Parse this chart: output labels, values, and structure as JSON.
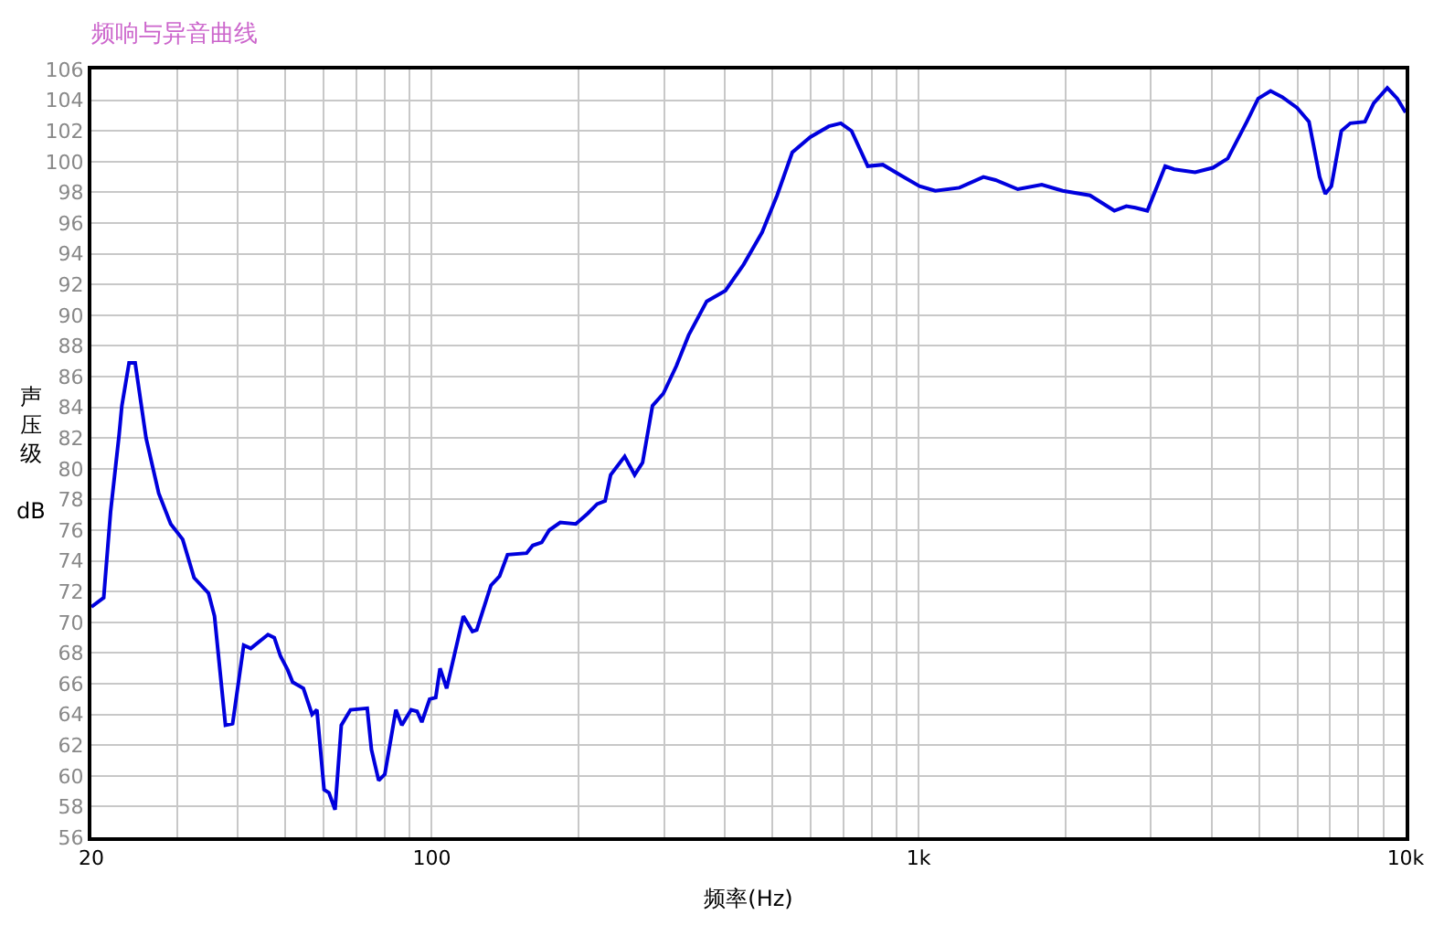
{
  "chart_data": {
    "type": "line",
    "title": "频响与异音曲线",
    "xlabel": "频率(Hz)",
    "ylabel": "声压级 dB",
    "log": "x",
    "grid": true,
    "line_style": "solid",
    "xlim": [
      20,
      10000
    ],
    "xticks": [
      20,
      {
        "value": 30,
        "label": null
      },
      {
        "value": 40,
        "label": null
      },
      {
        "value": 50,
        "label": null
      },
      {
        "value": 60,
        "label": null
      },
      {
        "value": 70,
        "label": null
      },
      {
        "value": 80,
        "label": null
      },
      {
        "value": 90,
        "label": null
      },
      100,
      {
        "value": 200,
        "label": null
      },
      {
        "value": 300,
        "label": null
      },
      {
        "value": 400,
        "label": null
      },
      {
        "value": 500,
        "label": null
      },
      {
        "value": 600,
        "label": null
      },
      {
        "value": 700,
        "label": null
      },
      {
        "value": 800,
        "label": null
      },
      {
        "value": 900,
        "label": null
      },
      {
        "value": 1000,
        "label": "1k"
      },
      {
        "value": 2000,
        "label": null
      },
      {
        "value": 3000,
        "label": null
      },
      {
        "value": 4000,
        "label": null
      },
      {
        "value": 5000,
        "label": null
      },
      {
        "value": 6000,
        "label": null
      },
      {
        "value": 7000,
        "label": null
      },
      {
        "value": 8000,
        "label": null
      },
      {
        "value": 9000,
        "label": null
      },
      {
        "value": 10000,
        "label": "10k"
      }
    ],
    "ylim": [
      56,
      106
    ],
    "yticks": [
      56,
      58,
      60,
      62,
      64,
      66,
      68,
      70,
      72,
      74,
      76,
      78,
      80,
      82,
      84,
      86,
      88,
      90,
      92,
      94,
      96,
      98,
      100,
      102,
      104,
      106
    ],
    "series": [
      {
        "color": "#0000dd",
        "x": [
          20,
          21.2,
          21.9,
          22.8,
          23.1,
          23.9,
          24.6,
          25.9,
          27.5,
          29.1,
          30.8,
          32.5,
          34.8,
          35.8,
          37.7,
          39.0,
          41.1,
          42.5,
          46.1,
          47.5,
          48.9,
          50.6,
          51.8,
          54.5,
          56.8,
          58.1,
          60.1,
          61.5,
          63.3,
          65.2,
          68.1,
          73.7,
          75.2,
          77.8,
          80.1,
          84.4,
          86.8,
          90.7,
          93.3,
          95.4,
          99.0,
          101.9,
          104.0,
          107.3,
          116.1,
          121.2,
          123.7,
          132.3,
          137.8,
          143.1,
          156.6,
          161.2,
          168.2,
          174.3,
          183.6,
          197.6,
          209.4,
          218.6,
          227,
          233,
          249,
          261,
          271,
          284,
          299,
          318,
          337,
          367,
          401,
          437,
          477,
          512,
          550,
          599,
          654,
          692,
          728,
          786,
          844,
          920,
          1004,
          1082,
          1212,
          1358,
          1438,
          1598,
          1790,
          1976,
          2248,
          2522,
          2670,
          2786,
          2948,
          3208,
          3346,
          3696,
          4020,
          4312,
          4720,
          4980,
          5280,
          5580,
          5986,
          6332,
          6660,
          6840,
          7040,
          7380,
          7700,
          8250,
          8600,
          9170,
          9616,
          10000
        ],
        "values": [
          71.0,
          71.6,
          77.2,
          82.2,
          84.1,
          86.9,
          86.9,
          82.0,
          78.4,
          76.4,
          75.4,
          72.9,
          71.9,
          70.4,
          63.3,
          63.4,
          68.5,
          68.3,
          69.2,
          69.0,
          67.8,
          66.9,
          66.1,
          65.7,
          64.0,
          64.3,
          59.1,
          58.9,
          57.8,
          63.3,
          64.3,
          64.4,
          61.7,
          59.7,
          60.1,
          64.3,
          63.3,
          64.3,
          64.2,
          63.5,
          65.0,
          65.1,
          67.0,
          65.7,
          70.4,
          69.4,
          69.5,
          72.4,
          73.0,
          74.4,
          74.5,
          75.0,
          75.2,
          76.0,
          76.5,
          76.4,
          77.1,
          77.7,
          77.9,
          79.6,
          80.8,
          79.6,
          80.4,
          84.1,
          84.9,
          86.7,
          88.7,
          90.9,
          91.6,
          93.3,
          95.4,
          97.8,
          100.6,
          101.6,
          102.3,
          102.5,
          102.0,
          99.7,
          99.8,
          99.1,
          98.4,
          98.1,
          98.3,
          99.0,
          98.8,
          98.2,
          98.5,
          98.1,
          97.8,
          96.8,
          97.1,
          97.0,
          96.8,
          99.7,
          99.5,
          99.3,
          99.6,
          100.2,
          102.6,
          104.1,
          104.6,
          104.2,
          103.5,
          102.6,
          99.0,
          97.9,
          98.4,
          102.0,
          102.5,
          102.6,
          103.8,
          104.8,
          104.1,
          103.2
        ]
      }
    ]
  }
}
